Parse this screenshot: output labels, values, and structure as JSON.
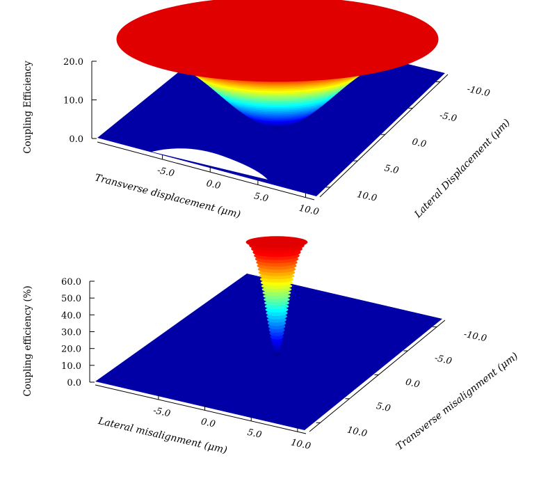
{
  "chart_data": [
    {
      "type": "surface",
      "zlabel": "Coupling Efficiency",
      "xlabel": "Transverse displacement (μm)",
      "ylabel": "Lateral Displacement (μm)",
      "x_ticks": [
        "-5.0",
        "0.0",
        "5.0",
        "10.0"
      ],
      "y_ticks": [
        "-10.0",
        "-5.0",
        "0.0",
        "5.0",
        "10.0"
      ],
      "z_ticks": [
        "0.0",
        "10.0",
        "20.0"
      ],
      "xlim": [
        -10,
        10
      ],
      "ylim": [
        -10,
        10
      ],
      "zlim": [
        0,
        20
      ],
      "peak": {
        "x": 0,
        "y": 0,
        "z": 20.5
      },
      "width_x": 4.5,
      "width_y": 7.0,
      "colormap": [
        "#00008b",
        "#0000ff",
        "#00ffff",
        "#ffff00",
        "#ff0000"
      ]
    },
    {
      "type": "surface",
      "zlabel": "Coupling efficiency (%)",
      "xlabel": "Lateral misalignment (μm)",
      "ylabel": "Transverse misalignment (μm)",
      "x_ticks": [
        "-5.0",
        "0.0",
        "5.0",
        "10.0"
      ],
      "y_ticks": [
        "-10.0",
        "-5.0",
        "0.0",
        "5.0",
        "10.0"
      ],
      "z_ticks": [
        "0.0",
        "10.0",
        "20.0",
        "30.0",
        "40.0",
        "50.0",
        "60.0"
      ],
      "xlim": [
        -10,
        10
      ],
      "ylim": [
        -10,
        10
      ],
      "zlim": [
        0,
        60
      ],
      "peak": {
        "x": 0,
        "y": 0,
        "z": 65
      },
      "width_x": 1.0,
      "width_y": 1.0,
      "colormap": [
        "#00008b",
        "#0000ff",
        "#00ffff",
        "#ffff00",
        "#ff0000"
      ]
    }
  ]
}
